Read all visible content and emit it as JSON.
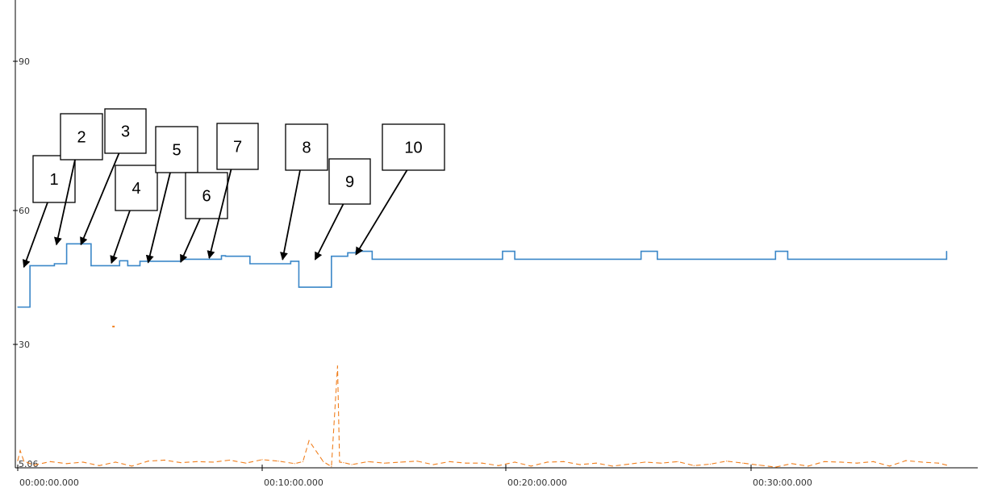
{
  "chart_data": {
    "type": "line",
    "title": "",
    "xlabel": "",
    "ylabel": "",
    "ylim": [
      5.06,
      100
    ],
    "xlim": [
      "00:00:00.000",
      "00:38:00.000"
    ],
    "grid": false,
    "y_ticks": [
      "5.06",
      "30",
      "60",
      "90"
    ],
    "x_ticks": [
      "00:00:00.000",
      "00:10:00.000",
      "00:20:00.000",
      "00:30:00.000"
    ],
    "series": [
      {
        "name": "",
        "color": "#3A87C8",
        "style": "step",
        "x": [
          "00:00:00.000",
          "00:00:20.000",
          "00:00:30.000",
          "00:01:30.000",
          "00:02:00.000",
          "00:02:45.000",
          "00:03:00.000",
          "00:04:10.000",
          "00:04:30.000",
          "00:05:00.000",
          "00:05:20.000",
          "00:06:40.000",
          "00:07:00.000",
          "00:08:20.000",
          "00:08:30.000",
          "00:09:30.000",
          "00:11:10.000",
          "00:11:30.000",
          "00:12:20.000",
          "00:12:50.000",
          "00:13:30.000",
          "00:13:50.000",
          "00:14:30.000",
          "00:19:50.000",
          "00:20:20.000",
          "00:25:30.000",
          "00:26:10.000",
          "00:31:00.000",
          "00:31:30.000",
          "00:38:00.000"
        ],
        "y": [
          37.3,
          37.3,
          45.6,
          46.0,
          50.0,
          50.0,
          45.6,
          46.6,
          45.6,
          46.5,
          46.5,
          46.9,
          46.9,
          47.6,
          47.5,
          46.0,
          46.5,
          41.3,
          41.3,
          47.5,
          48.2,
          48.5,
          46.9,
          48.5,
          46.9,
          48.5,
          46.9,
          48.5,
          46.9,
          48.5
        ]
      },
      {
        "name": "",
        "color": "#F07F1E",
        "style": "dashed",
        "x": [
          "00:00:00.000",
          "00:00:06.000",
          "00:00:15.000",
          "00:00:40.000",
          "00:01:20.000",
          "00:02:00.000",
          "00:02:40.000",
          "00:03:20.000",
          "00:04:00.000",
          "00:04:40.000",
          "00:05:20.000",
          "00:06:00.000",
          "00:06:40.000",
          "00:07:20.000",
          "00:08:00.000",
          "00:08:40.000",
          "00:09:20.000",
          "00:10:00.000",
          "00:10:40.000",
          "00:11:20.000",
          "00:11:40.000",
          "00:11:55.000",
          "00:12:30.000",
          "00:12:50.000",
          "00:13:05.000",
          "00:13:10.000",
          "00:13:20.000",
          "00:13:40.000",
          "00:14:20.000",
          "00:15:00.000",
          "00:15:40.000",
          "00:16:20.000",
          "00:17:00.000",
          "00:17:40.000",
          "00:18:20.000",
          "00:19:00.000",
          "00:19:40.000",
          "00:20:20.000",
          "00:21:00.000",
          "00:21:40.000",
          "00:22:20.000",
          "00:23:00.000",
          "00:23:40.000",
          "00:24:20.000",
          "00:25:00.000",
          "00:25:40.000",
          "00:26:20.000",
          "00:27:00.000",
          "00:27:40.000",
          "00:28:20.000",
          "00:29:00.000",
          "00:29:40.000",
          "00:30:20.000",
          "00:31:00.000",
          "00:31:40.000",
          "00:32:20.000",
          "00:33:00.000",
          "00:33:40.000",
          "00:34:20.000",
          "00:35:00.000",
          "00:35:40.000",
          "00:36:20.000",
          "00:37:00.000",
          "00:37:40.000",
          "00:38:00.000"
        ],
        "y": [
          6.5,
          8.5,
          6.4,
          5.6,
          6.3,
          5.9,
          6.2,
          5.5,
          6.2,
          5.4,
          6.4,
          6.6,
          6.1,
          6.3,
          6.2,
          6.6,
          6.0,
          6.7,
          6.4,
          5.9,
          6.3,
          10.5,
          6.3,
          5.3,
          25.5,
          6.2,
          6.1,
          5.7,
          6.3,
          6.0,
          6.2,
          6.4,
          5.7,
          6.3,
          6.0,
          6.0,
          5.5,
          6.2,
          5.4,
          6.2,
          6.3,
          5.7,
          6.0,
          5.4,
          5.8,
          6.2,
          6.0,
          6.3,
          5.5,
          5.8,
          6.4,
          6.0,
          5.6,
          5.2,
          5.9,
          5.4,
          6.3,
          6.2,
          6.0,
          6.3,
          5.4,
          6.5,
          6.2,
          6.0,
          5.6
        ]
      }
    ],
    "outliers": [
      {
        "x": "00:03:55.000",
        "y": 33.4,
        "color": "#F07F1E"
      }
    ],
    "annotations": [
      {
        "label": "1",
        "x": "00:00:15.000",
        "y": 45.0
      },
      {
        "label": "2",
        "x": "00:01:35.000",
        "y": 49.5
      },
      {
        "label": "3",
        "x": "00:02:35.000",
        "y": 49.5
      },
      {
        "label": "4",
        "x": "00:03:50.000",
        "y": 45.8
      },
      {
        "label": "5",
        "x": "00:05:20.000",
        "y": 45.9
      },
      {
        "label": "6",
        "x": "00:06:40.000",
        "y": 46.0
      },
      {
        "label": "7",
        "x": "00:07:50.000",
        "y": 46.8
      },
      {
        "label": "8",
        "x": "00:10:50.000",
        "y": 46.5
      },
      {
        "label": "9",
        "x": "00:12:10.000",
        "y": 46.5
      },
      {
        "label": "10",
        "x": "00:13:50.000",
        "y": 47.5
      }
    ]
  }
}
